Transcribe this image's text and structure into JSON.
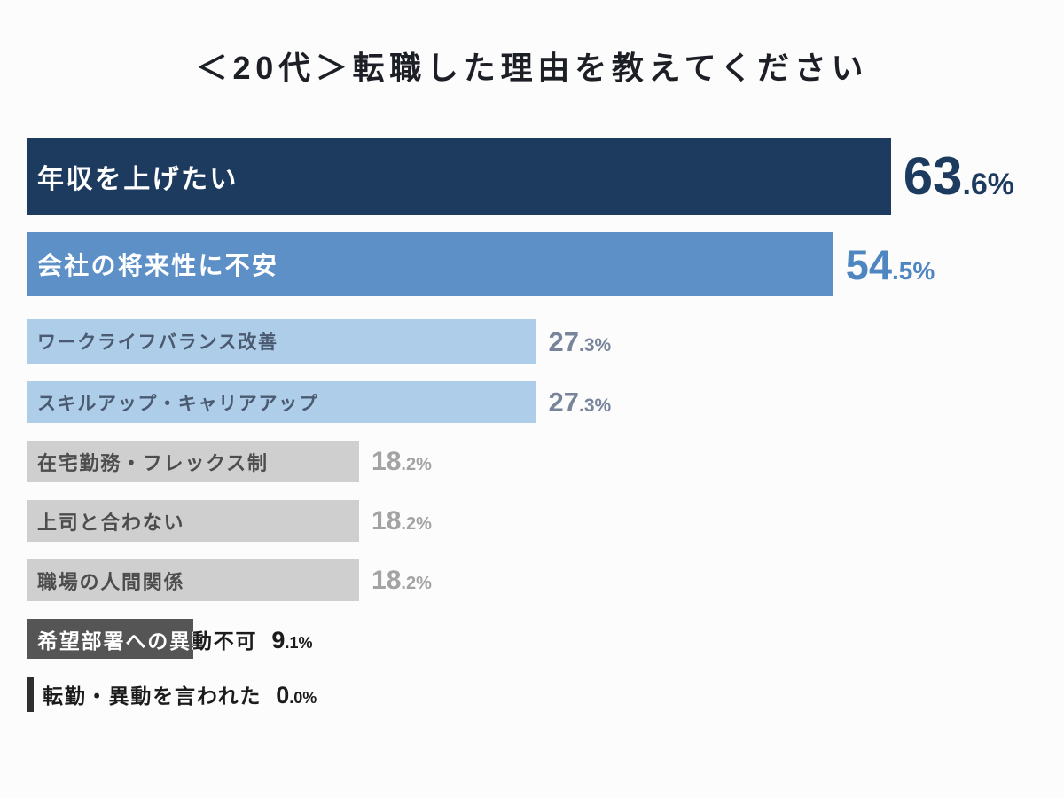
{
  "title": "＜20代＞転職した理由を教えてください",
  "chart_data": {
    "type": "bar",
    "orientation": "horizontal",
    "title": "＜20代＞転職した理由を教えてください",
    "xlim": [
      0,
      100
    ],
    "grid": false,
    "legend": false,
    "categories": [
      "年収を上げたい",
      "会社の将来性に不安",
      "ワークライフバランス改善",
      "スキルアップ・キャリアアップ",
      "在宅勤務・フレックス制",
      "上司と合わない",
      "職場の人間関係",
      "希望部署への異動不可",
      "転勤・異動を言われた"
    ],
    "values": [
      63.6,
      54.5,
      27.3,
      27.3,
      18.2,
      18.2,
      18.2,
      9.1,
      0.0
    ],
    "bars": [
      {
        "label": "年収を上げたい",
        "value": 63.6,
        "value_int": "63",
        "value_frac": ".6%",
        "color": "#1d3a5f",
        "label_color": "#ffffff",
        "value_color": "#1d3a5f",
        "width_pct": 85.5
      },
      {
        "label": "会社の将来性に不安",
        "value": 54.5,
        "value_int": "54",
        "value_frac": ".5%",
        "color": "#5e90c8",
        "label_color": "#ffffff",
        "value_color": "#4e86c2",
        "width_pct": 79.8
      },
      {
        "label": "ワークライフバランス改善",
        "value": 27.3,
        "value_int": "27",
        "value_frac": ".3%",
        "color": "#aecde9",
        "label_color": "#4a5a70",
        "value_color": "#77849a",
        "width_pct": 50.4
      },
      {
        "label": "スキルアップ・キャリアアップ",
        "value": 27.3,
        "value_int": "27",
        "value_frac": ".3%",
        "color": "#aecde9",
        "label_color": "#4a5a70",
        "value_color": "#77849a",
        "width_pct": 50.4
      },
      {
        "label": "在宅勤務・フレックス制",
        "value": 18.2,
        "value_int": "18",
        "value_frac": ".2%",
        "color": "#cfcfcf",
        "label_color": "#4d4d4d",
        "value_color": "#a3a3a3",
        "width_pct": 32.9
      },
      {
        "label": "上司と合わない",
        "value": 18.2,
        "value_int": "18",
        "value_frac": ".2%",
        "color": "#cfcfcf",
        "label_color": "#4d4d4d",
        "value_color": "#a3a3a3",
        "width_pct": 32.9
      },
      {
        "label": "職場の人間関係",
        "value": 18.2,
        "value_int": "18",
        "value_frac": ".2%",
        "color": "#cfcfcf",
        "label_color": "#4d4d4d",
        "value_color": "#a3a3a3",
        "width_pct": 32.9
      },
      {
        "label": "希望部署への異動不可",
        "value": 9.1,
        "value_int": "9",
        "value_frac": ".1%",
        "color": "#555555",
        "label_color": null,
        "value_color": "#1c1c1c",
        "width_pct": 16.5
      },
      {
        "label": "転勤・異動を言われた",
        "value": 0.0,
        "value_int": "0",
        "value_frac": ".0%",
        "color": "#2f2f2f",
        "label_color": "#1c1c1c",
        "value_color": "#1c1c1c",
        "width_pct": 0.7
      }
    ]
  }
}
